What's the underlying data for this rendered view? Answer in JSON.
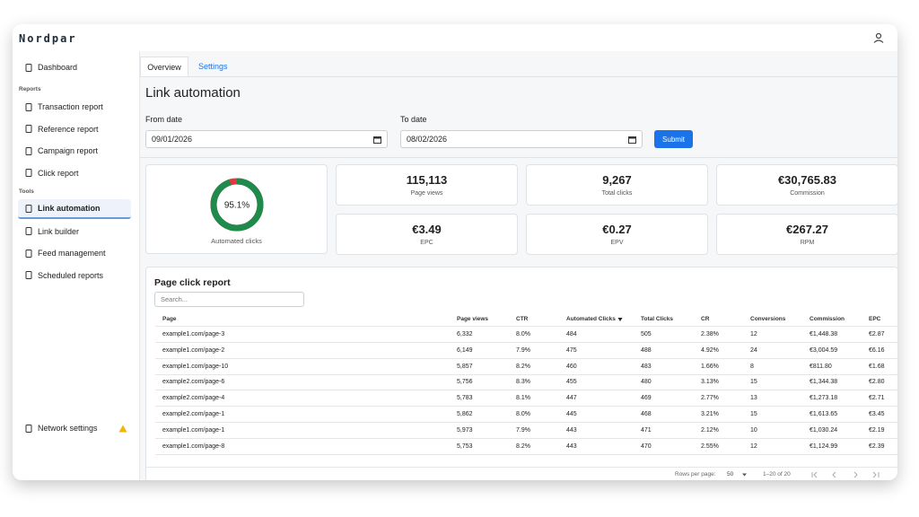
{
  "header": {
    "brand": "Nordpar"
  },
  "sidebar": {
    "top": [
      {
        "label": "Dashboard"
      }
    ],
    "sections": [
      {
        "title": "Reports",
        "items": [
          {
            "label": "Transaction report"
          },
          {
            "label": "Reference report"
          },
          {
            "label": "Campaign report"
          },
          {
            "label": "Click report"
          }
        ]
      },
      {
        "title": "Tools",
        "items": [
          {
            "label": "Link automation",
            "active": true
          },
          {
            "label": "Link builder"
          },
          {
            "label": "Feed management"
          },
          {
            "label": "Scheduled reports"
          }
        ]
      }
    ],
    "footer": {
      "label": "Network settings"
    }
  },
  "tabs": [
    "Overview",
    "Settings"
  ],
  "page": {
    "title": "Link automation",
    "from_label": "From date",
    "from_value": "09/01/2026",
    "to_label": "To date",
    "to_value": "08/02/2026",
    "submit": "Submit"
  },
  "kpis": {
    "donut": {
      "value": 95.1,
      "label": "95.1%",
      "caption": "Automated clicks"
    },
    "cards": [
      {
        "value": "115,113",
        "label": "Page views"
      },
      {
        "value": "9,267",
        "label": "Total clicks"
      },
      {
        "value": "€30,765.83",
        "label": "Commission"
      },
      {
        "value": "€3.49",
        "label": "EPC"
      },
      {
        "value": "€0.27",
        "label": "EPV"
      },
      {
        "value": "€267.27",
        "label": "RPM"
      }
    ]
  },
  "table": {
    "title": "Page click report",
    "search_placeholder": "Search...",
    "columns": [
      "Page",
      "Page views",
      "CTR",
      "Automated Clicks",
      "Total Clicks",
      "CR",
      "Conversions",
      "Commission",
      "EPC"
    ],
    "rows": [
      [
        "example1.com/page-3",
        "6,332",
        "8.0%",
        "484",
        "505",
        "2.38%",
        "12",
        "€1,448.38",
        "€2.87"
      ],
      [
        "example1.com/page-2",
        "6,149",
        "7.9%",
        "475",
        "488",
        "4.92%",
        "24",
        "€3,004.59",
        "€6.16"
      ],
      [
        "example1.com/page-10",
        "5,857",
        "8.2%",
        "460",
        "483",
        "1.66%",
        "8",
        "€811.80",
        "€1.68"
      ],
      [
        "example2.com/page-6",
        "5,756",
        "8.3%",
        "455",
        "480",
        "3.13%",
        "15",
        "€1,344.38",
        "€2.80"
      ],
      [
        "example2.com/page-4",
        "5,783",
        "8.1%",
        "447",
        "469",
        "2.77%",
        "13",
        "€1,273.18",
        "€2.71"
      ],
      [
        "example2.com/page-1",
        "5,862",
        "8.0%",
        "445",
        "468",
        "3.21%",
        "15",
        "€1,613.65",
        "€3.45"
      ],
      [
        "example1.com/page-1",
        "5,973",
        "7.9%",
        "443",
        "471",
        "2.12%",
        "10",
        "€1,030.24",
        "€2.19"
      ],
      [
        "example1.com/page-8",
        "5,753",
        "8.2%",
        "443",
        "470",
        "2.55%",
        "12",
        "€1,124.99",
        "€2.39"
      ]
    ]
  },
  "pagination": {
    "rows_per_page_label": "Rows per page:",
    "rows_per_page": "50",
    "range": "1–20 of 20"
  }
}
